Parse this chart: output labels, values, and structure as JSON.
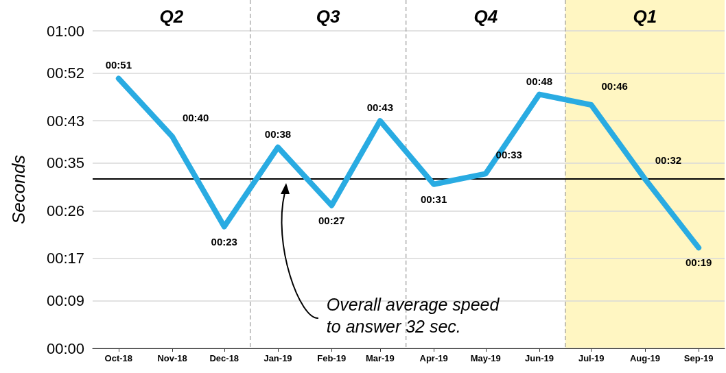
{
  "chart_data": {
    "type": "line",
    "ylabel": "Seconds",
    "x": [
      "2018-10",
      "2018-11",
      "2018-12",
      "2019-01",
      "2019-02",
      "2019-03",
      "2019-04",
      "2019-05",
      "2019-06",
      "2019-07",
      "2019-08",
      "2019-09"
    ],
    "xlim": [
      "2018-09-16",
      "2019-09-16"
    ],
    "xticks": [
      {
        "value": "2018-10",
        "label": "Oct-18"
      },
      {
        "value": "2018-11",
        "label": "Nov-18"
      },
      {
        "value": "2018-12",
        "label": "Dec-18"
      },
      {
        "value": "2019-01",
        "label": "Jan-19"
      },
      {
        "value": "2019-02",
        "label": "Feb-19"
      },
      {
        "value": "2019-03",
        "label": "Mar-19"
      },
      {
        "value": "2019-04",
        "label": "Apr-19"
      },
      {
        "value": "2019-05",
        "label": "May-19"
      },
      {
        "value": "2019-06",
        "label": "Jun-19"
      },
      {
        "value": "2019-07",
        "label": "Jul-19"
      },
      {
        "value": "2019-08",
        "label": "Aug-19"
      },
      {
        "value": "2019-09",
        "label": "Sep-19"
      }
    ],
    "series": [
      {
        "color": "#29abe2",
        "values": [
          51,
          40,
          23,
          38,
          27,
          43,
          31,
          33,
          48,
          46,
          32,
          19
        ],
        "value_labels": [
          "00:51",
          "00:40",
          "00:23",
          "00:38",
          "00:27",
          "00:43",
          "00:31",
          "00:33",
          "00:48",
          "00:46",
          "00:32",
          "00:19"
        ]
      }
    ],
    "ylim": [
      0,
      60
    ],
    "yticks": [
      {
        "value": 0,
        "label": "00:00"
      },
      {
        "value": 9,
        "label": "00:09"
      },
      {
        "value": 17,
        "label": "00:17"
      },
      {
        "value": 26,
        "label": "00:26"
      },
      {
        "value": 35,
        "label": "00:35"
      },
      {
        "value": 43,
        "label": "00:43"
      },
      {
        "value": 52,
        "label": "00:52"
      },
      {
        "value": 60,
        "label": "01:00"
      }
    ],
    "grid": "y",
    "marker": "none",
    "line_style": "solid",
    "ref_lines": [
      {
        "axis": "y",
        "value": 32,
        "color": "#000000"
      },
      {
        "axis": "x",
        "value": "2018-12-16",
        "color": "#999999",
        "line_style": "dashed"
      },
      {
        "axis": "x",
        "value": "2019-03-16",
        "color": "#999999",
        "line_style": "dashed"
      },
      {
        "axis": "x",
        "value": "2019-06-16",
        "color": "#999999",
        "line_style": "dashed"
      }
    ],
    "bands": [
      {
        "axis": "x",
        "from": "2019-06-16",
        "to": "2019-09-16",
        "label": "Q1",
        "color": "#fff6c2"
      }
    ],
    "annotations": [
      "Q2",
      "Q3",
      "Q4",
      "Overall average speed to answer 32 sec."
    ]
  }
}
